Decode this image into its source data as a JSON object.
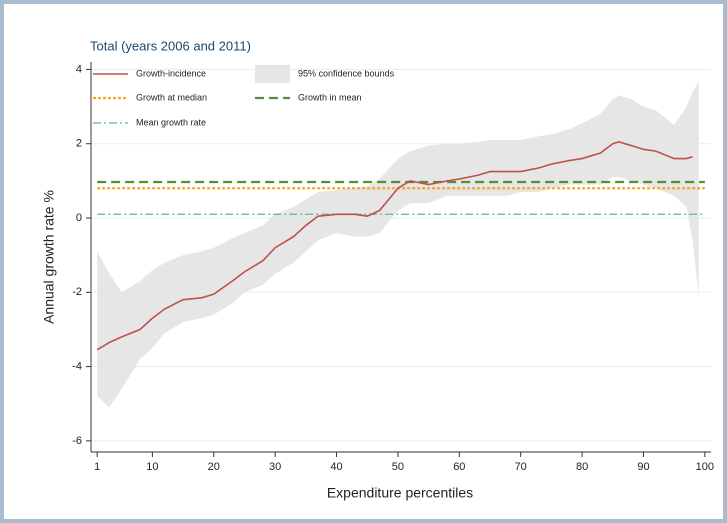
{
  "chart_data": {
    "type": "line",
    "title": "Total (years 2006 and 2011)",
    "x_label": "Expenditure percentiles",
    "y_label": "Annual growth rate %",
    "x": [
      1,
      3,
      5,
      8,
      10,
      12,
      15,
      18,
      20,
      23,
      25,
      28,
      30,
      33,
      35,
      37,
      40,
      43,
      45,
      47,
      50,
      52,
      55,
      58,
      60,
      63,
      65,
      68,
      70,
      73,
      75,
      78,
      80,
      83,
      85,
      86,
      88,
      90,
      92,
      95,
      97,
      98,
      99
    ],
    "series": [
      {
        "name": "Growth-incidence",
        "color": "#c0504d",
        "values": [
          -3.55,
          -3.35,
          -3.2,
          -3.0,
          -2.7,
          -2.45,
          -2.2,
          -2.15,
          -2.05,
          -1.7,
          -1.45,
          -1.15,
          -0.8,
          -0.5,
          -0.2,
          0.05,
          0.1,
          0.1,
          0.05,
          0.2,
          0.8,
          1.0,
          0.9,
          1.0,
          1.05,
          1.15,
          1.25,
          1.25,
          1.25,
          1.35,
          1.45,
          1.55,
          1.6,
          1.75,
          2.0,
          2.05,
          1.95,
          1.85,
          1.8,
          1.6,
          1.6,
          1.65,
          null
        ]
      }
    ],
    "band": {
      "name": "95% confidence bounds",
      "color": "#e6e6e6",
      "upper": [
        -0.9,
        -1.5,
        -2.0,
        -1.7,
        -1.4,
        -1.2,
        -1.0,
        -0.9,
        -0.8,
        -0.55,
        -0.4,
        -0.2,
        0.1,
        0.3,
        0.5,
        0.7,
        0.75,
        0.8,
        0.85,
        1.05,
        1.6,
        1.8,
        1.95,
        2.0,
        2.0,
        2.05,
        2.1,
        2.1,
        2.1,
        2.2,
        2.25,
        2.4,
        2.55,
        2.8,
        3.2,
        3.3,
        3.2,
        3.0,
        2.9,
        2.5,
        3.0,
        3.4,
        3.65
      ],
      "lower": [
        -4.8,
        -5.1,
        -4.6,
        -3.8,
        -3.5,
        -3.1,
        -2.8,
        -2.7,
        -2.6,
        -2.3,
        -2.0,
        -1.8,
        -1.5,
        -1.2,
        -0.9,
        -0.6,
        -0.4,
        -0.5,
        -0.5,
        -0.4,
        0.2,
        0.4,
        0.4,
        0.6,
        0.6,
        0.6,
        0.6,
        0.6,
        0.7,
        0.7,
        0.8,
        0.9,
        0.9,
        0.9,
        1.1,
        1.1,
        1.0,
        0.9,
        0.8,
        0.6,
        0.3,
        -0.6,
        -2.1
      ]
    },
    "reference_lines": [
      {
        "name": "Growth at median",
        "color": "#f5a623",
        "value": 0.8
      },
      {
        "name": "Growth in mean",
        "color": "#5a8a3c",
        "value": 0.97
      },
      {
        "name": "Mean growth rate",
        "color": "#5fb39a",
        "value": 0.1
      }
    ],
    "xlim": [
      0,
      101
    ],
    "ylim": [
      -6.3,
      4.2
    ],
    "xticks": [
      1,
      10,
      20,
      30,
      40,
      50,
      60,
      70,
      80,
      90,
      100
    ],
    "yticks": [
      -6,
      -4,
      -2,
      0,
      2,
      4
    ],
    "grid": true
  }
}
